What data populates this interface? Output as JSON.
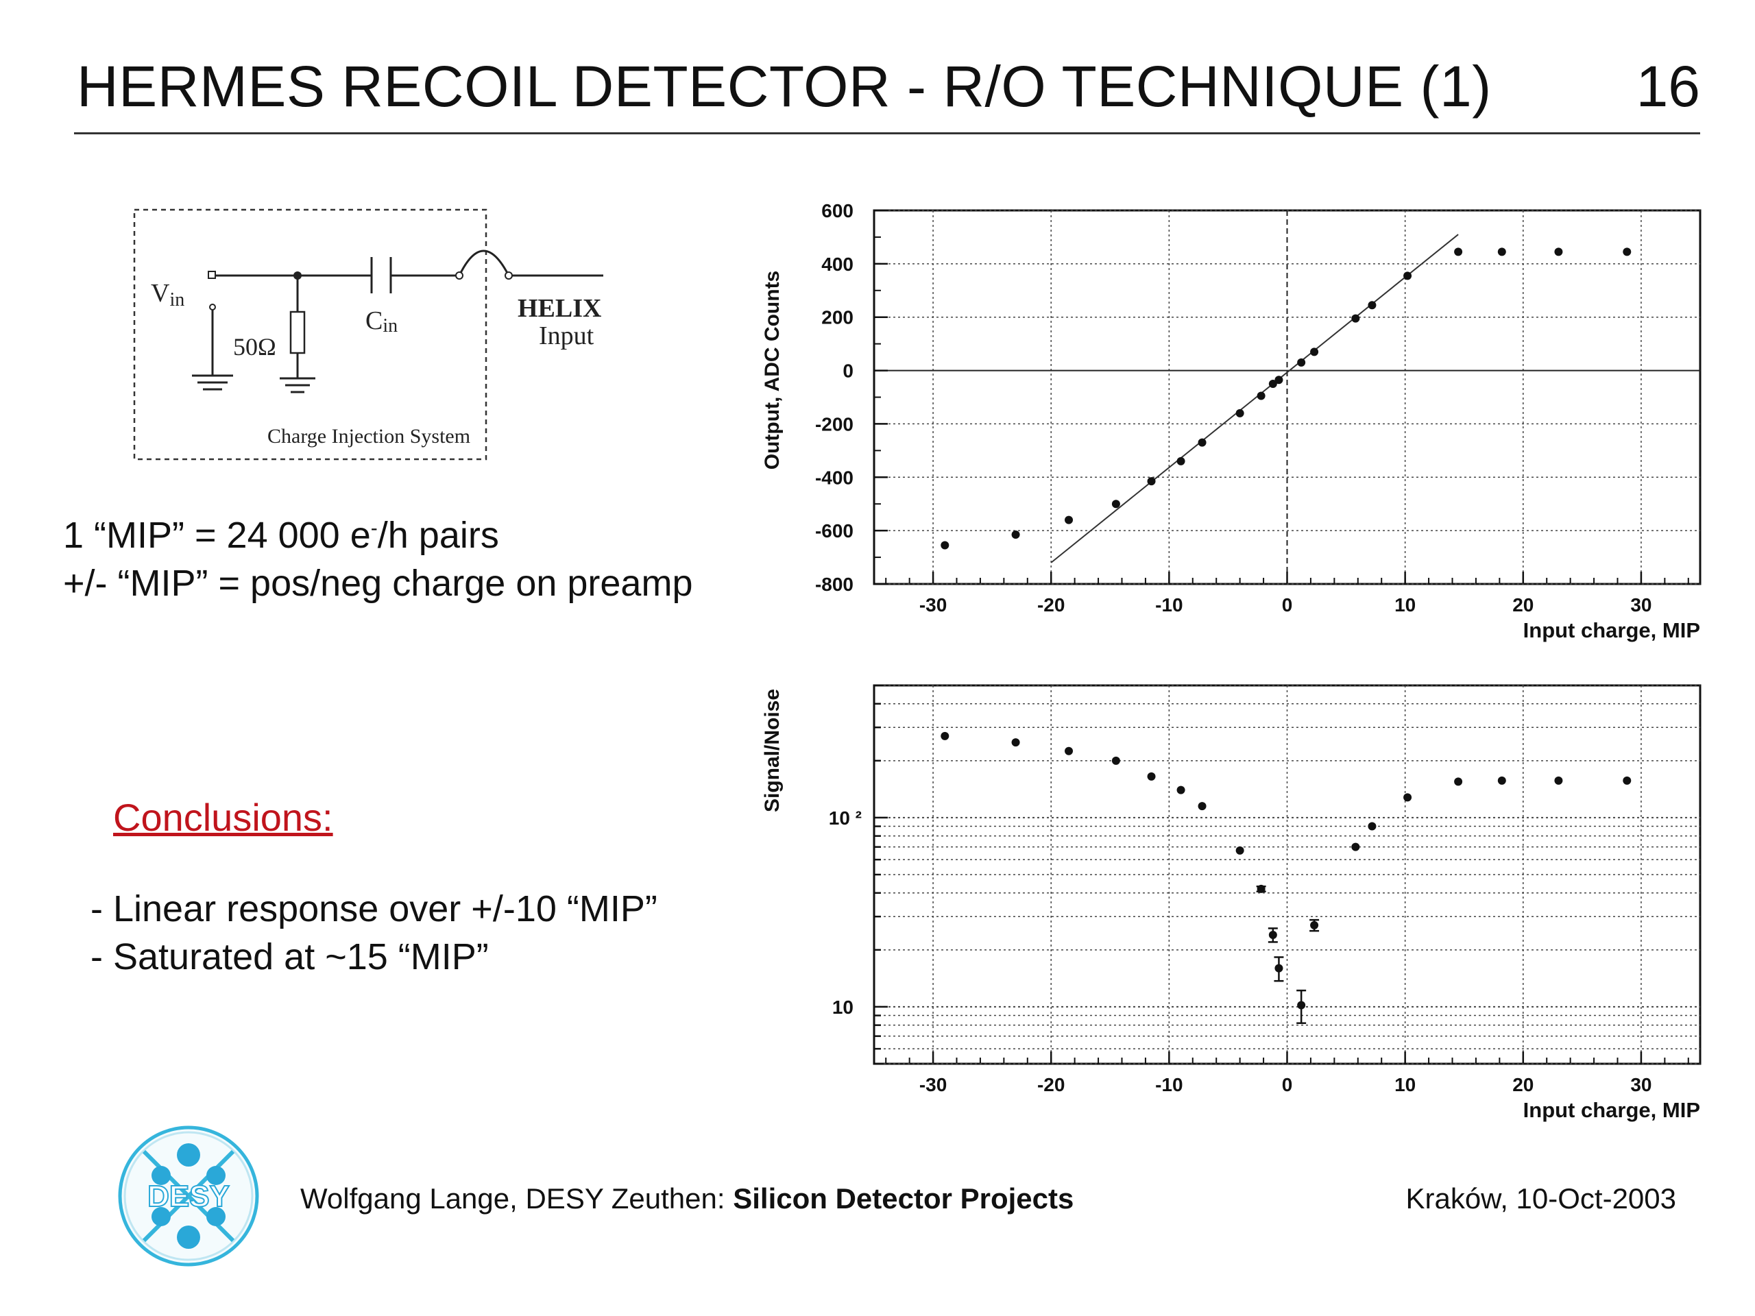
{
  "header": {
    "title": "HERMES RECOIL DETECTOR - R/O TECHNIQUE (1)",
    "page_number": "16"
  },
  "circuit": {
    "vin_main": "V",
    "vin_sub": "in",
    "resistor_label": "50Ω",
    "cap_main": "C",
    "cap_sub": "in",
    "helix_line1": "HELIX",
    "helix_line2": "Input",
    "caption": "Charge Injection System"
  },
  "notes": {
    "line1_pre": "1 “MIP” = 24 000 e",
    "line1_sup": "-",
    "line1_post": "/h pairs",
    "line2": "+/- “MIP” = pos/neg charge on preamp"
  },
  "conclusions": {
    "heading": "Conclusions:",
    "items": [
      "- Linear response over +/-10 “MIP”",
      "- Saturated at ~15 “MIP”"
    ]
  },
  "footer": {
    "author": "Wolfgang Lange, DESY Zeuthen: ",
    "project": "Silicon Detector Projects",
    "place_date": "Kraków, 10-Oct-2003",
    "logo_text": "DESY"
  },
  "chart_data": [
    {
      "type": "scatter",
      "xlabel": "Input charge, MIP",
      "ylabel": "Output, ADC Counts",
      "xlim": [
        -35,
        35
      ],
      "ylim": [
        -800,
        600
      ],
      "xticks": [
        -30,
        -20,
        -10,
        0,
        10,
        20,
        30
      ],
      "yticks": [
        -800,
        -600,
        -400,
        -200,
        0,
        200,
        400,
        600
      ],
      "grid": true,
      "x": [
        -29,
        -23,
        -18.5,
        -14.5,
        -11.5,
        -9,
        -7.2,
        -4,
        -2.2,
        -1.2,
        -0.7,
        1.2,
        2.3,
        5.8,
        7.2,
        10.2,
        14.5,
        18.2,
        23,
        28.8
      ],
      "y": [
        -655,
        -615,
        -560,
        -500,
        -415,
        -340,
        -270,
        -160,
        -95,
        -50,
        -35,
        30,
        70,
        195,
        245,
        355,
        445,
        445,
        445,
        445
      ],
      "fit_line": {
        "x": [
          -20,
          14.5
        ],
        "y": [
          -720,
          510
        ]
      }
    },
    {
      "type": "scatter",
      "xlabel": "Input charge, MIP",
      "ylabel": "Signal/Noise",
      "xlim": [
        -35,
        35
      ],
      "ylim": [
        5,
        500
      ],
      "yscale": "log",
      "xticks": [
        -30,
        -20,
        -10,
        0,
        10,
        20,
        30
      ],
      "ytick_labels": [
        "10",
        "10 ²"
      ],
      "grid": true,
      "x": [
        -29,
        -23,
        -18.5,
        -14.5,
        -11.5,
        -9,
        -7.2,
        -4,
        -2.2,
        -1.2,
        -0.7,
        1.2,
        2.3,
        5.8,
        7.2,
        10.2,
        14.5,
        18.2,
        23,
        28.8
      ],
      "y": [
        270,
        250,
        225,
        200,
        165,
        140,
        115,
        67,
        42,
        24,
        16,
        10.2,
        27,
        70,
        90,
        128,
        155,
        157,
        157,
        157
      ],
      "yerr": [
        0,
        0,
        0,
        0,
        0,
        0,
        0,
        0,
        1.3,
        2,
        2.3,
        2,
        1.8,
        0,
        0,
        0,
        0,
        0,
        0,
        0
      ]
    }
  ]
}
